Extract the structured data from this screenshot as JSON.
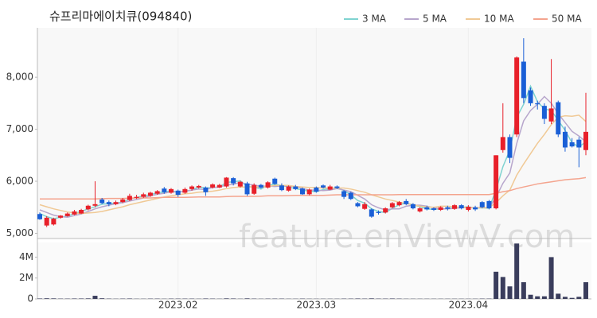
{
  "chart_data": {
    "type": "candlestick",
    "title": "슈프리마에이치큐(094840)",
    "watermark": "feature.enViewV.com",
    "categories": [
      null,
      null,
      null,
      null,
      null,
      null,
      null,
      null,
      null,
      null,
      null,
      null,
      null,
      null,
      null,
      null,
      null,
      null,
      null,
      null,
      "2023.02",
      null,
      null,
      null,
      null,
      null,
      null,
      null,
      null,
      null,
      null,
      null,
      null,
      null,
      null,
      null,
      null,
      null,
      null,
      null,
      "2023.03",
      null,
      null,
      null,
      null,
      null,
      null,
      null,
      null,
      null,
      null,
      null,
      null,
      null,
      null,
      null,
      null,
      null,
      null,
      null,
      null,
      null,
      "2023.04",
      null,
      null,
      null,
      null,
      null,
      null,
      null,
      null,
      null,
      null,
      null,
      null,
      null,
      null,
      null,
      null,
      null
    ],
    "open": [
      5370,
      5150,
      5170,
      5300,
      5330,
      5360,
      5380,
      5460,
      5530,
      5650,
      5600,
      5560,
      5600,
      5640,
      5680,
      5700,
      5720,
      5760,
      5860,
      5780,
      5820,
      5780,
      5850,
      5880,
      5880,
      5880,
      5880,
      5900,
      6060,
      5900,
      5960,
      5760,
      5930,
      5880,
      6050,
      5920,
      5820,
      5900,
      5860,
      5750,
      5880,
      5920,
      5840,
      5900,
      5810,
      5780,
      5580,
      5470,
      5460,
      5410,
      5400,
      5500,
      5540,
      5620,
      5560,
      5420,
      5500,
      5480,
      5450,
      5500,
      5470,
      5540,
      5450,
      5500,
      5600,
      5620,
      5480,
      6600,
      6850,
      6900,
      8300,
      7750,
      7500,
      7450,
      7150,
      7520,
      6950,
      6750,
      6800,
      6600
    ],
    "high": [
      5400,
      5330,
      5300,
      5350,
      5400,
      5450,
      5470,
      5550,
      6000,
      5680,
      5630,
      5630,
      5680,
      5760,
      5740,
      5780,
      5800,
      5830,
      5890,
      5870,
      5840,
      5880,
      5920,
      5930,
      5900,
      5960,
      5950,
      6080,
      6080,
      6010,
      5990,
      5960,
      5950,
      6000,
      6070,
      5960,
      5920,
      5930,
      5880,
      5860,
      5900,
      5940,
      5930,
      5920,
      5830,
      5800,
      5600,
      5600,
      5480,
      5440,
      5500,
      5600,
      5620,
      5660,
      5580,
      5500,
      5530,
      5500,
      5520,
      5530,
      5560,
      5560,
      5540,
      5530,
      5620,
      5640,
      6500,
      7500,
      6900,
      8400,
      8750,
      7800,
      7550,
      7500,
      8350,
      7550,
      7050,
      6830,
      6850,
      7700
    ],
    "low": [
      5260,
      5120,
      5150,
      5280,
      5320,
      5350,
      5370,
      5440,
      5500,
      5560,
      5520,
      5540,
      5580,
      5620,
      5660,
      5680,
      5700,
      5740,
      5760,
      5760,
      5700,
      5760,
      5820,
      5860,
      5720,
      5860,
      5870,
      5880,
      5920,
      5880,
      5720,
      5740,
      5860,
      5860,
      5930,
      5810,
      5800,
      5830,
      5740,
      5730,
      5780,
      5860,
      5830,
      5850,
      5660,
      5640,
      5500,
      5450,
      5300,
      5360,
      5380,
      5480,
      5520,
      5540,
      5460,
      5400,
      5440,
      5430,
      5430,
      5440,
      5450,
      5460,
      5420,
      5430,
      5480,
      5460,
      5460,
      6550,
      6350,
      6850,
      7500,
      7450,
      7380,
      7100,
      7100,
      6850,
      6570,
      6650,
      6270,
      6500
    ],
    "close": [
      5270,
      5300,
      5280,
      5340,
      5380,
      5420,
      5450,
      5530,
      5560,
      5580,
      5560,
      5600,
      5650,
      5720,
      5700,
      5750,
      5780,
      5810,
      5790,
      5850,
      5740,
      5850,
      5900,
      5910,
      5790,
      5940,
      5930,
      6070,
      5960,
      5990,
      5750,
      5930,
      5880,
      5980,
      5950,
      5830,
      5900,
      5850,
      5750,
      5840,
      5800,
      5880,
      5900,
      5870,
      5700,
      5660,
      5520,
      5560,
      5320,
      5390,
      5480,
      5580,
      5600,
      5560,
      5480,
      5480,
      5460,
      5450,
      5500,
      5470,
      5540,
      5480,
      5510,
      5460,
      5500,
      5480,
      6500,
      6850,
      6450,
      8380,
      7600,
      7500,
      7480,
      7200,
      7400,
      6900,
      6650,
      6670,
      6650,
      6950
    ],
    "up_color": "#e8202a",
    "down_color": "#1a5fd6",
    "ylim": [
      4900,
      8950
    ],
    "yticks": [
      {
        "value": 5000,
        "label": "5,000"
      },
      {
        "value": 6000,
        "label": "6,000"
      },
      {
        "value": 7000,
        "label": "7,000"
      },
      {
        "value": 8000,
        "label": "8,000"
      }
    ],
    "series": [
      {
        "name": "3 MA",
        "color": "#7fd3d0",
        "values": [
          5380,
          5320,
          5280,
          5310,
          5330,
          5380,
          5420,
          5470,
          5510,
          5560,
          5570,
          5580,
          5600,
          5660,
          5690,
          5720,
          5740,
          5780,
          5790,
          5820,
          5790,
          5810,
          5830,
          5890,
          5870,
          5880,
          5890,
          5980,
          5990,
          6010,
          5900,
          5890,
          5850,
          5930,
          5940,
          5920,
          5890,
          5860,
          5830,
          5810,
          5800,
          5840,
          5860,
          5880,
          5820,
          5740,
          5630,
          5580,
          5470,
          5420,
          5400,
          5480,
          5550,
          5580,
          5550,
          5510,
          5470,
          5460,
          5470,
          5470,
          5500,
          5500,
          5510,
          5480,
          5490,
          5480,
          5830,
          6280,
          6600,
          7230,
          7480,
          7830,
          7530,
          7390,
          7360,
          7170,
          6980,
          6740,
          6660,
          6760
        ]
      },
      {
        "name": "5 MA",
        "color": "#b7a6cc",
        "values": [
          5450,
          5400,
          5350,
          5320,
          5310,
          5340,
          5370,
          5420,
          5470,
          5510,
          5540,
          5570,
          5590,
          5620,
          5650,
          5680,
          5720,
          5750,
          5770,
          5800,
          5790,
          5810,
          5830,
          5850,
          5840,
          5880,
          5890,
          5930,
          5940,
          5980,
          5940,
          5930,
          5900,
          5910,
          5900,
          5910,
          5910,
          5900,
          5860,
          5830,
          5830,
          5820,
          5830,
          5860,
          5830,
          5800,
          5730,
          5660,
          5550,
          5490,
          5450,
          5470,
          5470,
          5520,
          5540,
          5540,
          5520,
          5490,
          5470,
          5470,
          5480,
          5490,
          5500,
          5490,
          5500,
          5490,
          5690,
          5960,
          6160,
          6730,
          7160,
          7360,
          7480,
          7630,
          7500,
          7300,
          7130,
          6960,
          6870,
          6760
        ]
      },
      {
        "name": "10 MA",
        "color": "#f0c995",
        "values": [
          5550,
          5510,
          5470,
          5440,
          5410,
          5390,
          5380,
          5390,
          5400,
          5420,
          5450,
          5480,
          5510,
          5550,
          5580,
          5610,
          5640,
          5670,
          5700,
          5720,
          5740,
          5760,
          5770,
          5790,
          5800,
          5810,
          5830,
          5860,
          5880,
          5890,
          5890,
          5890,
          5890,
          5900,
          5920,
          5920,
          5920,
          5900,
          5890,
          5880,
          5880,
          5870,
          5870,
          5870,
          5870,
          5850,
          5820,
          5790,
          5740,
          5700,
          5660,
          5630,
          5600,
          5570,
          5550,
          5520,
          5510,
          5500,
          5520,
          5520,
          5510,
          5500,
          5490,
          5490,
          5490,
          5490,
          5590,
          5720,
          5830,
          6120,
          6330,
          6530,
          6730,
          6900,
          7090,
          7230,
          7260,
          7250,
          7270,
          7150
        ]
      },
      {
        "name": "50 MA",
        "color": "#f4a48e",
        "values": [
          5660,
          5660,
          5660,
          5660,
          5660,
          5660,
          5660,
          5660,
          5660,
          5665,
          5670,
          5670,
          5670,
          5675,
          5680,
          5680,
          5680,
          5685,
          5690,
          5690,
          5690,
          5690,
          5695,
          5700,
          5700,
          5700,
          5700,
          5705,
          5710,
          5710,
          5710,
          5710,
          5715,
          5720,
          5720,
          5720,
          5725,
          5730,
          5730,
          5730,
          5730,
          5730,
          5735,
          5740,
          5740,
          5740,
          5740,
          5740,
          5740,
          5740,
          5740,
          5740,
          5745,
          5745,
          5745,
          5745,
          5745,
          5745,
          5745,
          5745,
          5745,
          5745,
          5745,
          5745,
          5745,
          5745,
          5770,
          5800,
          5820,
          5860,
          5890,
          5920,
          5950,
          5970,
          5990,
          6010,
          6030,
          6040,
          6050,
          6070
        ]
      }
    ],
    "volume": {
      "color": "#3a3d5c",
      "ylim": [
        0,
        5400000
      ],
      "yticks": [
        0,
        {
          "value": 2000000,
          "label": "2M"
        },
        {
          "value": 4000000,
          "label": "4M"
        }
      ],
      "values": [
        40000,
        60000,
        50000,
        30000,
        30000,
        40000,
        40000,
        50000,
        300000,
        60000,
        30000,
        20000,
        30000,
        40000,
        20000,
        20000,
        30000,
        30000,
        20000,
        30000,
        30000,
        30000,
        30000,
        20000,
        40000,
        30000,
        20000,
        50000,
        40000,
        20000,
        50000,
        30000,
        20000,
        30000,
        30000,
        30000,
        20000,
        20000,
        30000,
        20000,
        20000,
        20000,
        20000,
        20000,
        30000,
        30000,
        40000,
        30000,
        50000,
        30000,
        30000,
        40000,
        30000,
        20000,
        20000,
        20000,
        20000,
        20000,
        20000,
        20000,
        20000,
        20000,
        20000,
        20000,
        30000,
        30000,
        2600000,
        2100000,
        1200000,
        5300000,
        1600000,
        400000,
        250000,
        250000,
        4000000,
        500000,
        200000,
        100000,
        200000,
        1600000
      ]
    }
  }
}
